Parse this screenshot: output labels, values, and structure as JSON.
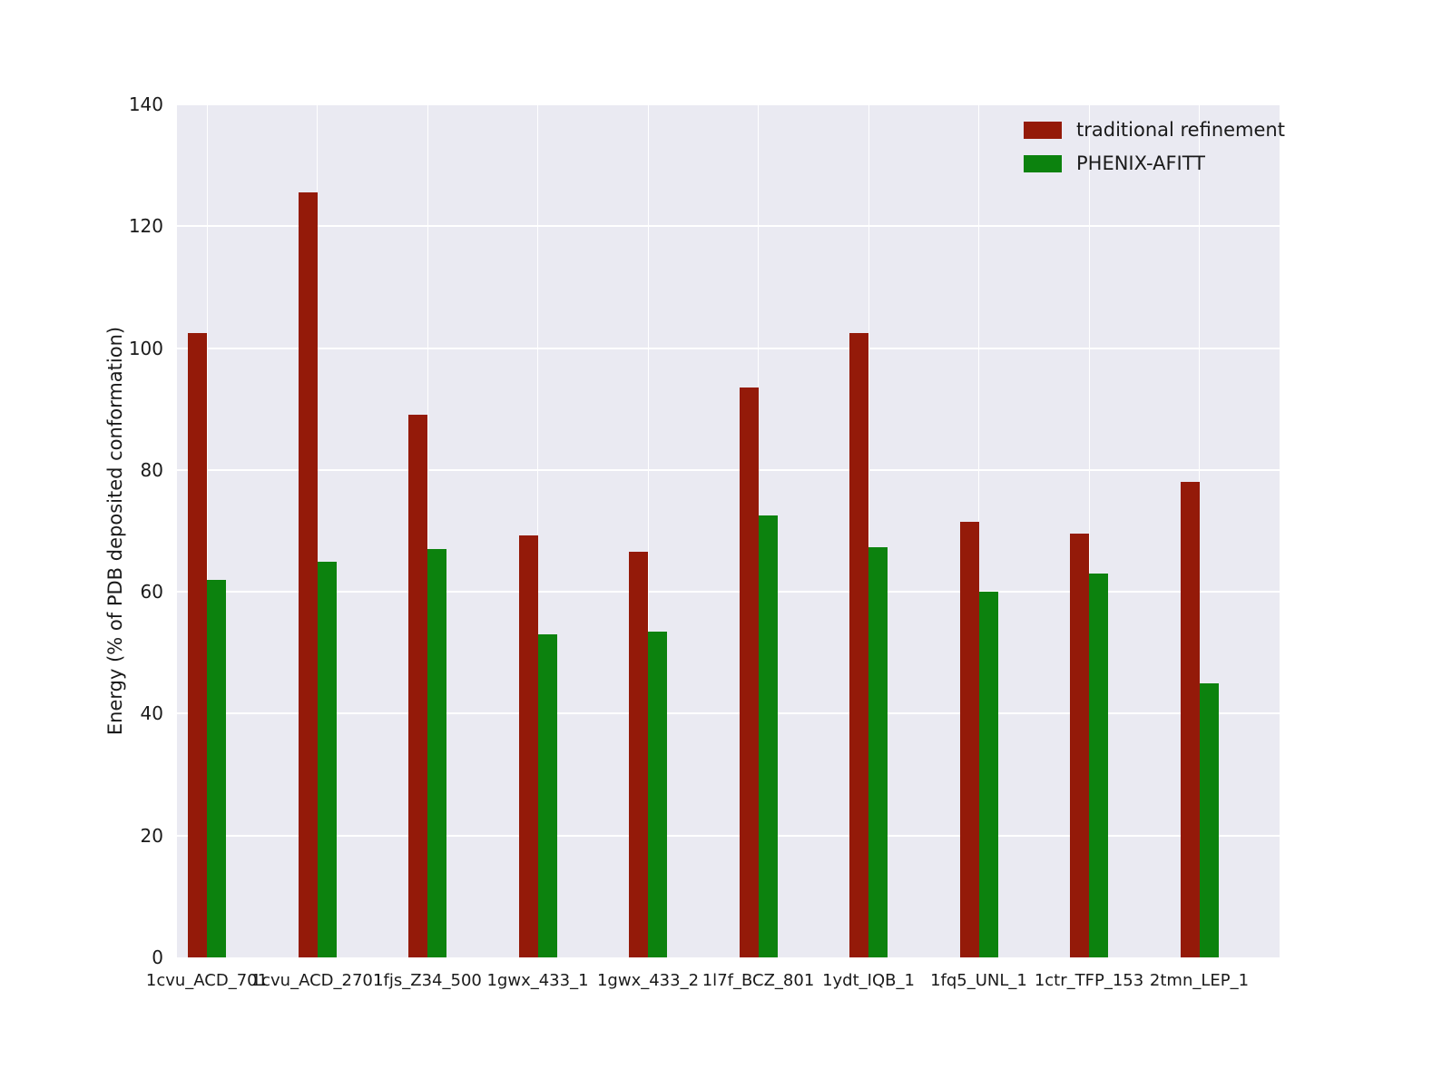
{
  "chart_data": {
    "type": "bar",
    "title": "",
    "xlabel": "",
    "ylabel": "Energy (% of PDB deposited conformation)",
    "ylim": [
      0,
      140
    ],
    "yticks": [
      0,
      20,
      40,
      60,
      80,
      100,
      120,
      140
    ],
    "grid": true,
    "legend_position": "upper right",
    "categories": [
      "1cvu_ACD_701",
      "1cvu_ACD_2701",
      "1fjs_Z34_500",
      "1gwx_433_1",
      "1gwx_433_2",
      "1l7f_BCZ_801",
      "1ydt_IQB_1",
      "1fq5_UNL_1",
      "1ctr_TFP_153",
      "2tmn_LEP_1"
    ],
    "series": [
      {
        "name": "traditional refinement",
        "color": "#941a09",
        "values": [
          102.5,
          125.5,
          89.0,
          69.2,
          66.6,
          93.5,
          102.5,
          71.5,
          69.5,
          78.0
        ]
      },
      {
        "name": "PHENIX-AFITT",
        "color": "#0c820e",
        "values": [
          62.0,
          65.0,
          67.0,
          53.0,
          53.5,
          72.5,
          67.3,
          60.0,
          63.0,
          45.0
        ]
      }
    ]
  },
  "colors": {
    "figure_background": "#ffffff",
    "plot_background": "#eaeaf2",
    "gridline": "#ffffff",
    "text": "#1a1a1a"
  }
}
